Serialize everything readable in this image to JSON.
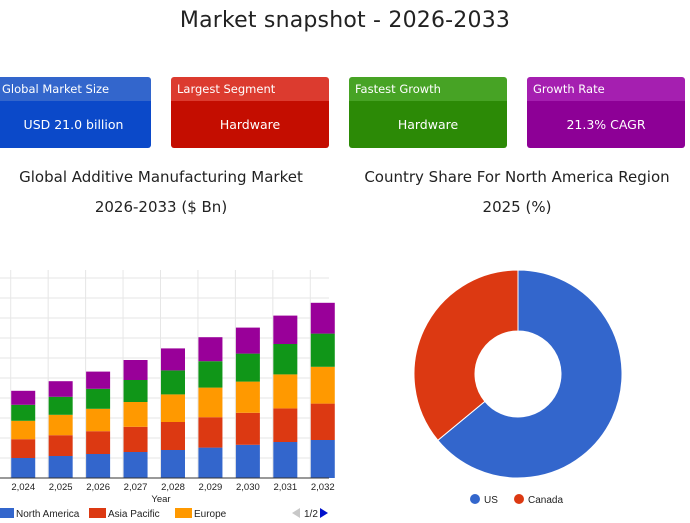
{
  "page": {
    "title": "Market snapshot - 2026-2033"
  },
  "cards": [
    {
      "label": "Global Market Size",
      "value": "USD 21.0 billion",
      "header_color": "#3366cc",
      "body_color": "#0b49c9"
    },
    {
      "label": "Largest Segment",
      "value": "Hardware",
      "header_color": "#dc3b2f",
      "body_color": "#c40d00"
    },
    {
      "label": "Fastest Growth",
      "value": "Hardware",
      "header_color": "#47a325",
      "body_color": "#2c8a06"
    },
    {
      "label": "Growth Rate",
      "value": "21.3% CAGR",
      "header_color": "#a51fb0",
      "body_color": "#8d0096"
    }
  ],
  "chart_data": [
    {
      "type": "bar",
      "stacked": true,
      "title_line1": "Global Additive Manufacturing Market",
      "title_line2": "2026-2033 ($ Bn)",
      "xlabel": "Year",
      "categories": [
        "2,024",
        "2,025",
        "2,026",
        "2,027",
        "2,028",
        "2,029",
        "2,030",
        "2,031",
        "2,032"
      ],
      "series": [
        {
          "name": "North America",
          "color": "#3366cc",
          "values": [
            5.0,
            5.5,
            6.0,
            6.5,
            7.0,
            7.6,
            8.3,
            9.0,
            9.5
          ]
        },
        {
          "name": "Asia Pacific",
          "color": "#dc3912",
          "values": [
            4.7,
            5.2,
            5.7,
            6.3,
            7.0,
            7.6,
            8.0,
            8.4,
            9.1
          ]
        },
        {
          "name": "Europe",
          "color": "#ff9900",
          "values": [
            4.6,
            5.1,
            5.6,
            6.2,
            6.9,
            7.4,
            7.8,
            8.5,
            9.2
          ]
        },
        {
          "name": "",
          "color": "#109618",
          "values": [
            4.0,
            4.5,
            5.0,
            5.5,
            6.0,
            6.6,
            7.0,
            7.6,
            8.3
          ]
        },
        {
          "name": "",
          "color": "#990099",
          "values": [
            3.5,
            3.9,
            4.3,
            5.0,
            5.5,
            6.0,
            6.5,
            7.1,
            7.7
          ]
        }
      ],
      "ylim": [
        0,
        52
      ],
      "legend_position": "bottom",
      "legend_page": "1/2",
      "gridlines": true
    },
    {
      "type": "pie",
      "donut": true,
      "title_line1": "Country Share For North America Region",
      "title_line2": "2025 (%)",
      "slices": [
        {
          "label": "US",
          "value": 64,
          "color": "#3366cc"
        },
        {
          "label": "Canada",
          "value": 36,
          "color": "#dc3912"
        }
      ],
      "legend_position": "bottom"
    }
  ]
}
